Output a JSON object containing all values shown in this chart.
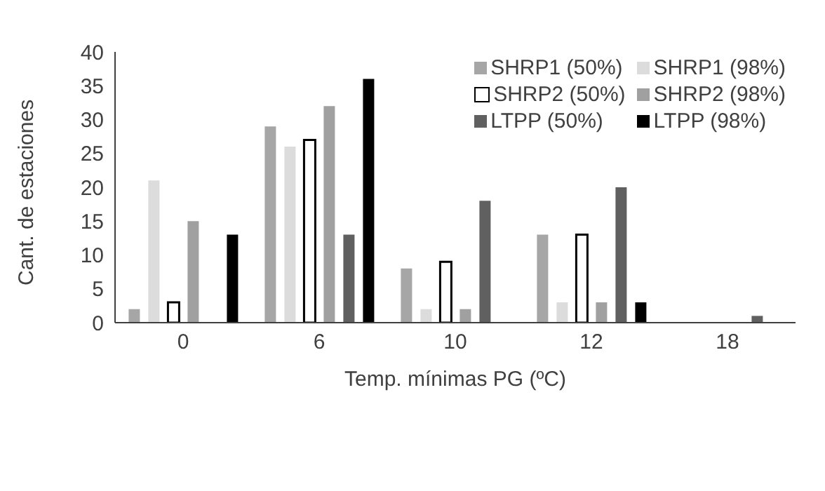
{
  "chart_data": {
    "type": "bar",
    "xlabel": "Temp. mínimas PG (ºC)",
    "ylabel": "Cant. de estaciones",
    "categories": [
      "0",
      "6",
      "10",
      "12",
      "18"
    ],
    "series": [
      {
        "name": "SHRP1 (50%)",
        "color": "#a6a6a6",
        "values": [
          2,
          29,
          8,
          13,
          0
        ]
      },
      {
        "name": "SHRP1 (98%)",
        "color": "#dcdcdc",
        "values": [
          21,
          26,
          2,
          3,
          0
        ]
      },
      {
        "name": "SHRP2 (50%)",
        "color": "#ffffff",
        "values": [
          3,
          27,
          9,
          13,
          0
        ]
      },
      {
        "name": "SHRP2 (98%)",
        "color": "#a0a0a0",
        "values": [
          15,
          32,
          2,
          3,
          0
        ]
      },
      {
        "name": "LTPP (50%)",
        "color": "#606060",
        "values": [
          0,
          13,
          18,
          20,
          1
        ]
      },
      {
        "name": "LTPP (98%)",
        "color": "#000000",
        "values": [
          13,
          36,
          0,
          3,
          0
        ]
      }
    ],
    "ylim": [
      0,
      40
    ],
    "yticks": [
      0,
      5,
      10,
      15,
      20,
      25,
      30,
      35,
      40
    ],
    "grid": false,
    "legend": "top right"
  }
}
